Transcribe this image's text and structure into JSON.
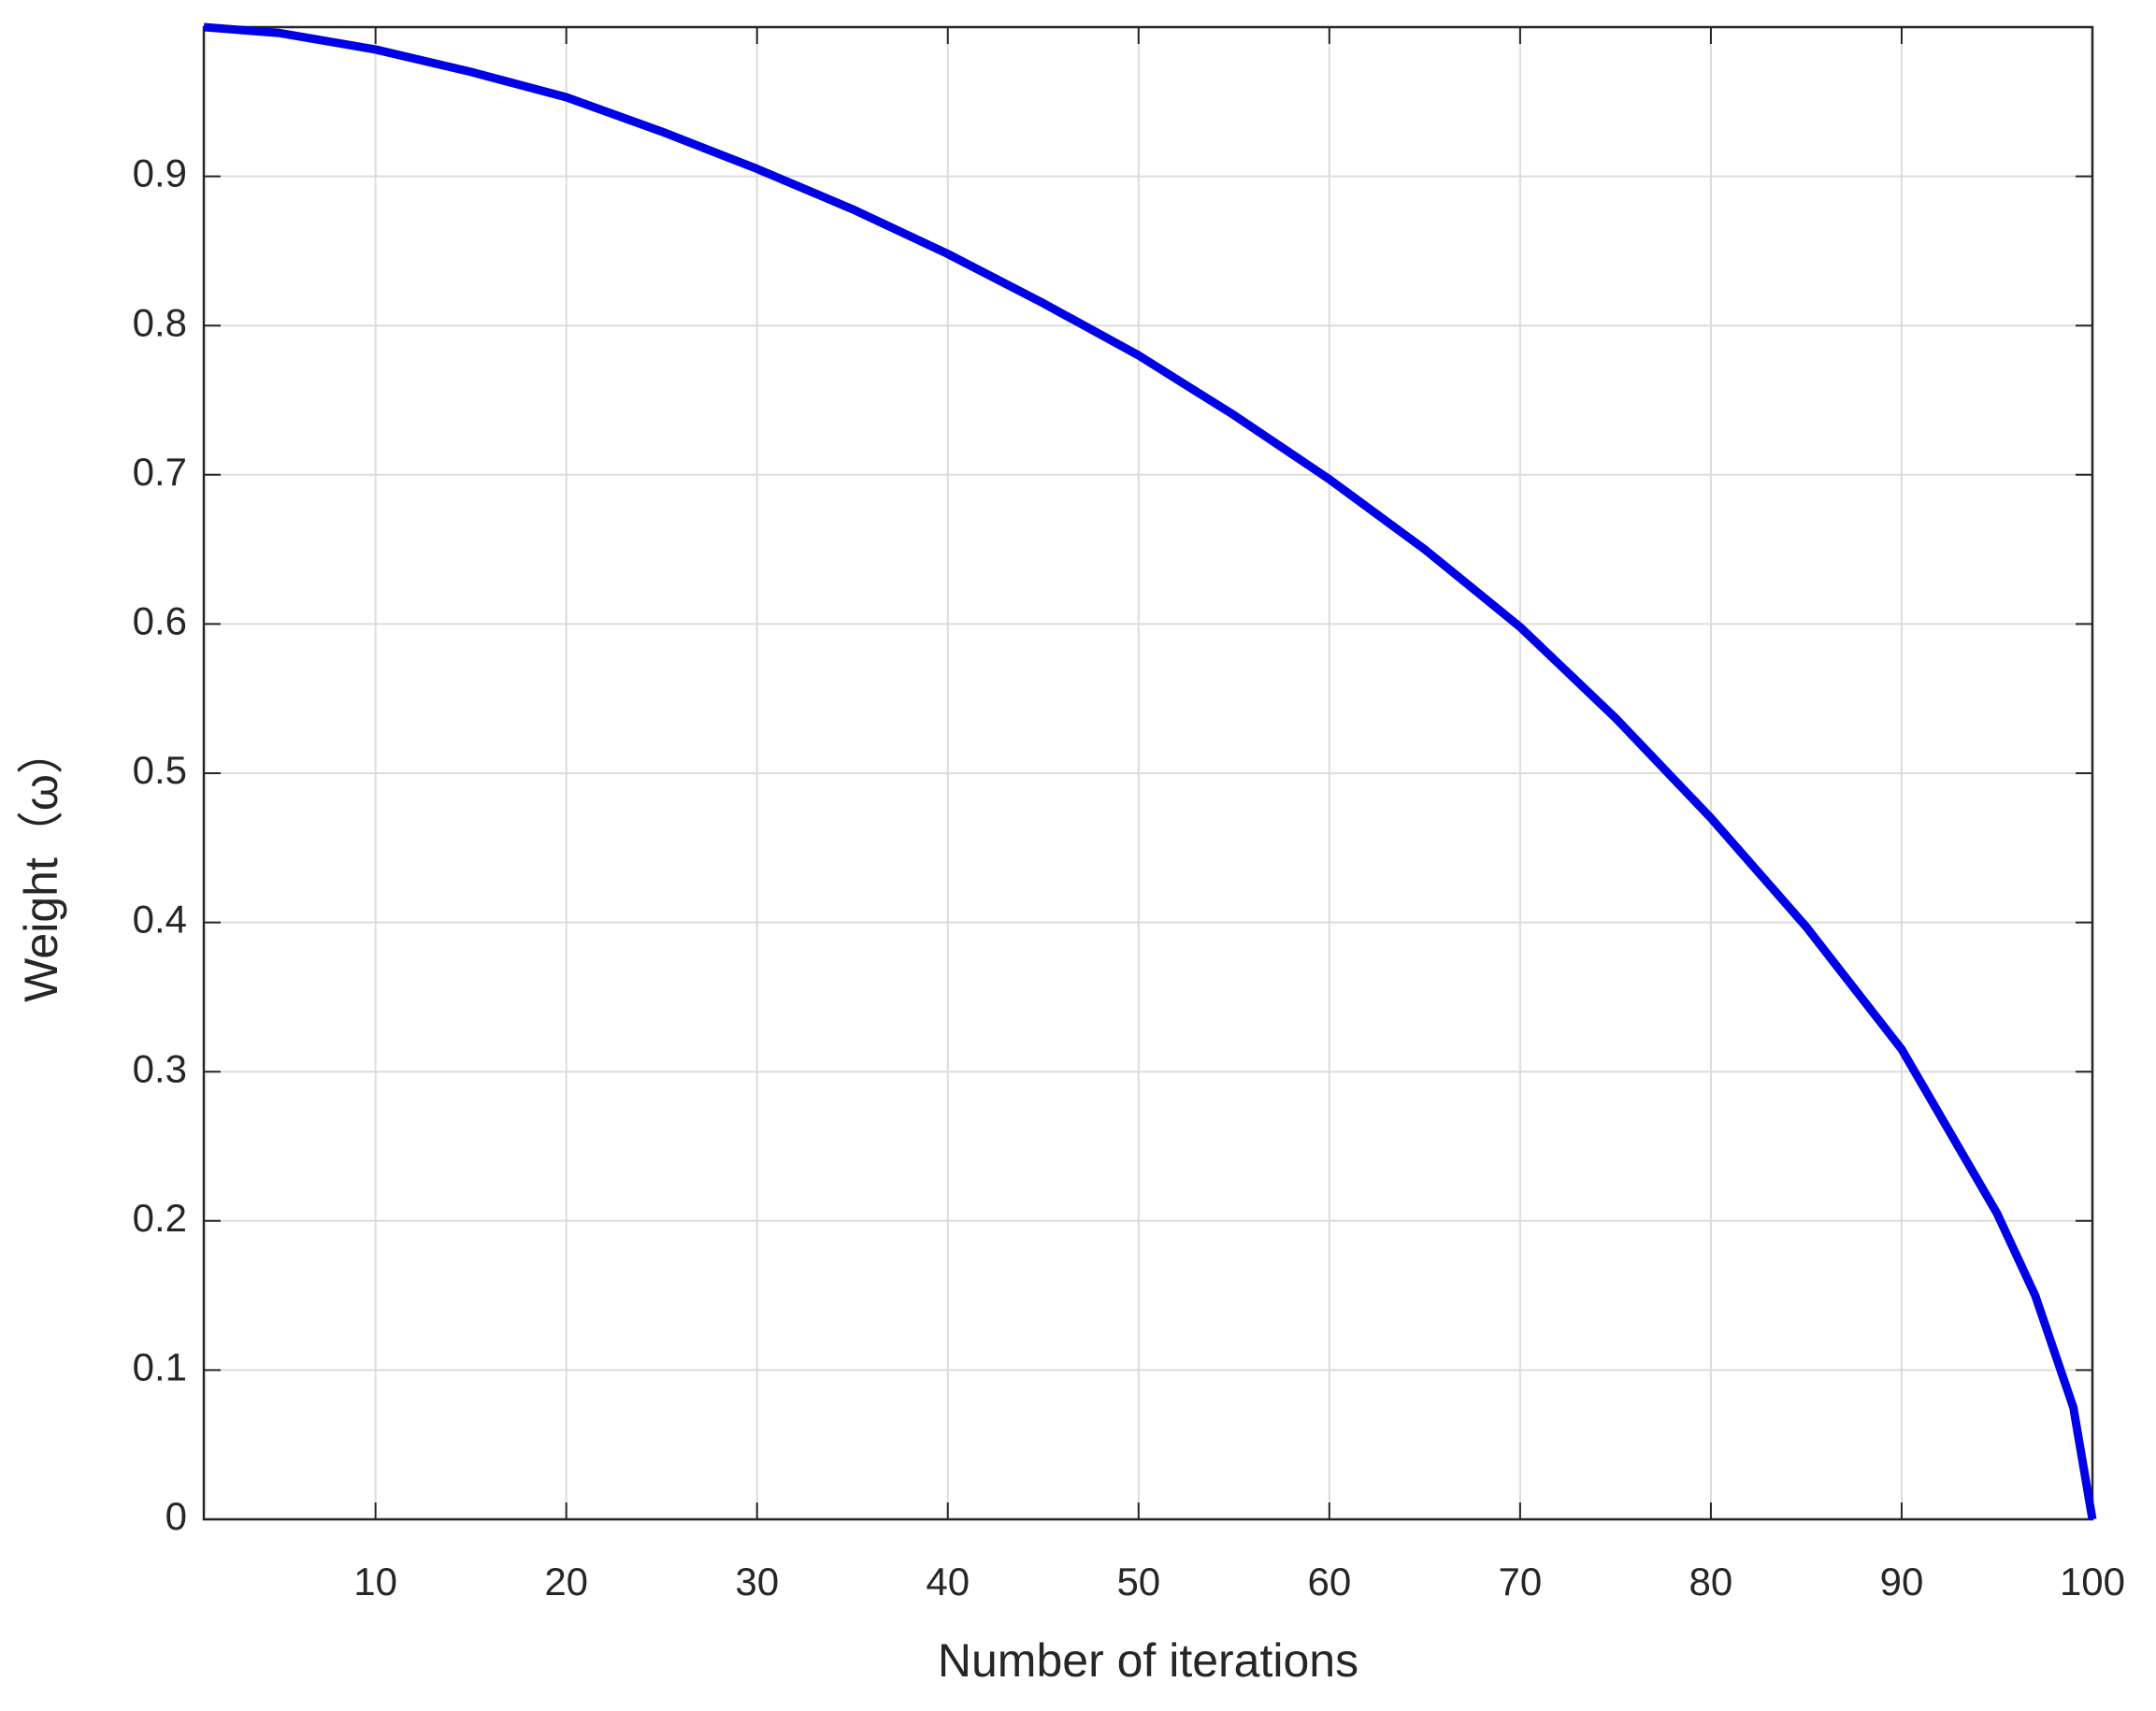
{
  "chart_data": {
    "type": "line",
    "x_label": "Number of iterations",
    "y_label": "Weight（ω）",
    "x": [
      1,
      5,
      10,
      15,
      20,
      25,
      30,
      35,
      40,
      45,
      50,
      55,
      60,
      65,
      70,
      75,
      80,
      85,
      90,
      95,
      97,
      99,
      100
    ],
    "series": [
      {
        "name": "Weight",
        "color": "#0000e6",
        "values": [
          1.0,
          0.996,
          0.985,
          0.97,
          0.953,
          0.93,
          0.905,
          0.878,
          0.848,
          0.815,
          0.78,
          0.74,
          0.697,
          0.65,
          0.598,
          0.537,
          0.47,
          0.397,
          0.315,
          0.205,
          0.15,
          0.075,
          0
        ]
      }
    ],
    "xlim": [
      1,
      100
    ],
    "xticks": [
      10,
      20,
      30,
      40,
      50,
      60,
      70,
      80,
      90,
      100
    ],
    "ylim": [
      0,
      1
    ],
    "yticks": [
      0,
      0.1,
      0.2,
      0.3,
      0.4,
      0.5,
      0.6,
      0.7,
      0.8,
      0.9
    ],
    "grid": true
  }
}
